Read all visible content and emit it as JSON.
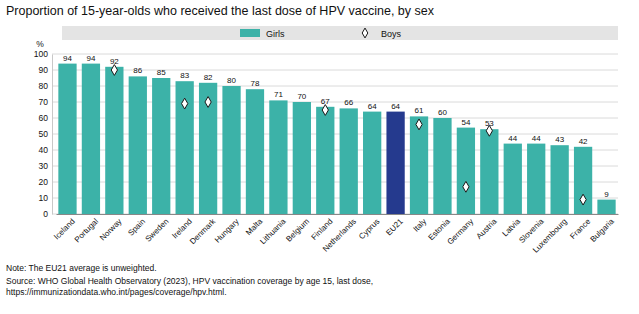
{
  "chart_data": {
    "type": "bar",
    "title": "Proportion of 15-year-olds who received the last dose of HPV vaccine, by sex",
    "y_label": "%",
    "categories": [
      "Iceland",
      "Portugal",
      "Norway",
      "Spain",
      "Sweden",
      "Ireland",
      "Denmark",
      "Hungary",
      "Malta",
      "Lithuania",
      "Belgium",
      "Finland",
      "Netherlands",
      "Cyprus",
      "EU21",
      "Italy",
      "Estonia",
      "Germany",
      "Austria",
      "Latvia",
      "Slovenia",
      "Luxembourg",
      "France",
      "Bulgaria"
    ],
    "series": [
      {
        "name": "Girls",
        "type": "bar",
        "data_labels": true,
        "colors": [
          "#3cb2a8",
          "#3cb2a8",
          "#3cb2a8",
          "#3cb2a8",
          "#3cb2a8",
          "#3cb2a8",
          "#3cb2a8",
          "#3cb2a8",
          "#3cb2a8",
          "#3cb2a8",
          "#3cb2a8",
          "#3cb2a8",
          "#3cb2a8",
          "#3cb2a8",
          "#253a8e",
          "#3cb2a8",
          "#3cb2a8",
          "#3cb2a8",
          "#3cb2a8",
          "#3cb2a8",
          "#3cb2a8",
          "#3cb2a8",
          "#3cb2a8",
          "#3cb2a8"
        ],
        "values": [
          94,
          94,
          92,
          86,
          85,
          83,
          82,
          80,
          78,
          71,
          70,
          67,
          66,
          64,
          64,
          61,
          60,
          54,
          53,
          44,
          44,
          43,
          42,
          9
        ]
      },
      {
        "name": "Boys",
        "type": "scatter",
        "marker": "diamond",
        "color": "#1a1a1a",
        "values": [
          null,
          null,
          90,
          null,
          null,
          69,
          70,
          null,
          null,
          null,
          null,
          65,
          null,
          null,
          null,
          56,
          null,
          17,
          52,
          null,
          null,
          null,
          9,
          null
        ]
      }
    ],
    "ylim": [
      0,
      100
    ],
    "yticks": [
      0,
      10,
      20,
      30,
      40,
      50,
      60,
      70,
      80,
      90,
      100
    ],
    "grid": true,
    "legend": "top",
    "notes": [
      "Note: The EU21 average is unweighted.",
      "Source: WHO Global Health Observatory (2023), HPV vaccination coverage by age 15, last dose,",
      "https://immunizationdata.who.int/pages/coverage/hpv.html."
    ]
  }
}
